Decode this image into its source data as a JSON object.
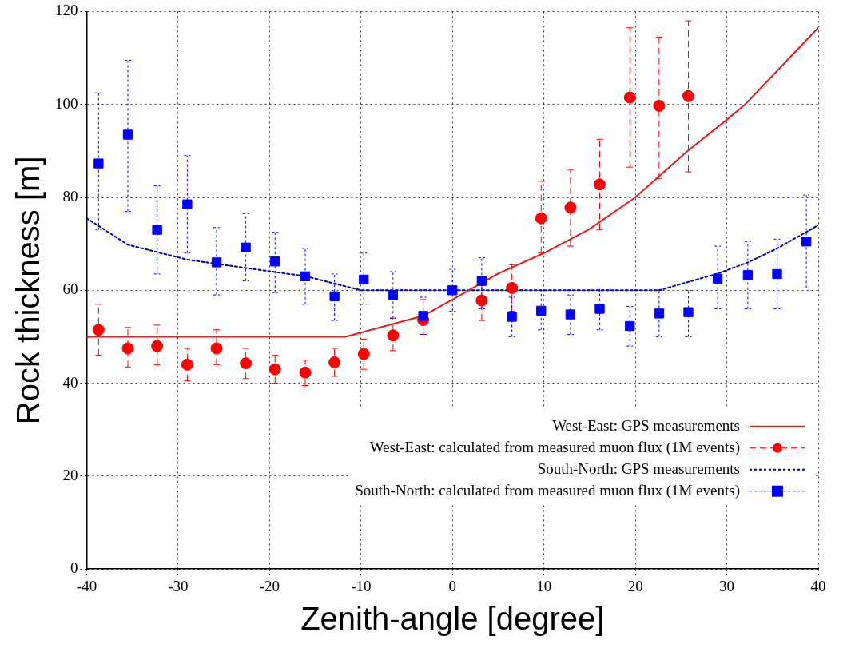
{
  "chart_data": {
    "type": "scatter",
    "xlabel": "Zenith-angle [degree]",
    "ylabel": "Rock thickness [m]",
    "xlim": [
      -40,
      40
    ],
    "xticks": [
      -40,
      -30,
      -20,
      -10,
      0,
      10,
      20,
      30,
      40
    ],
    "ylim": [
      0,
      120
    ],
    "yticks": [
      0,
      20,
      40,
      60,
      80,
      100,
      120
    ],
    "grid": true,
    "legend": "bottom right",
    "series": [
      {
        "name": "West-East: GPS measurements",
        "type": "line",
        "color": "#e41a1c",
        "line_style": "solid",
        "marker": "none",
        "x": [
          -40,
          -11.7,
          -3.2,
          0,
          5,
          10,
          15,
          20,
          25.6,
          30,
          32,
          40
        ],
        "values": [
          50,
          50,
          54.5,
          58,
          63.6,
          68,
          73.2,
          80,
          89.8,
          96.7,
          100,
          116.5
        ]
      },
      {
        "name": "West-East: calculated from measured muon flux (1M events)",
        "type": "scatter",
        "color": "#ff0000",
        "marker": "circle",
        "line_style": "dashed",
        "x": [
          -38.7,
          -35.5,
          -32.3,
          -29,
          -25.8,
          -22.6,
          -19.4,
          -16.1,
          -12.9,
          -9.7,
          -6.5,
          -3.2,
          3.2,
          6.5,
          9.7,
          12.9,
          16.1,
          19.4,
          22.6,
          25.8
        ],
        "values": [
          51.5,
          47.5,
          48,
          44,
          47.5,
          44.3,
          43,
          42.3,
          44.5,
          46.3,
          50.3,
          53.6,
          57.8,
          60.5,
          75.5,
          77.8,
          82.8,
          101.5,
          99.7,
          101.8
        ],
        "errors": [
          [
            46,
            57
          ],
          [
            43.5,
            52
          ],
          [
            44,
            52.5
          ],
          [
            40.5,
            47.5
          ],
          [
            44,
            51.5
          ],
          [
            41,
            47.5
          ],
          [
            40,
            46
          ],
          [
            39.5,
            45
          ],
          [
            41.5,
            47.5
          ],
          [
            43,
            49.5
          ],
          [
            47,
            54
          ],
          [
            50.5,
            58
          ],
          [
            53.5,
            61.5
          ],
          [
            55.5,
            65.5
          ],
          [
            68,
            83.5
          ],
          [
            69.5,
            86
          ],
          [
            73,
            92.5
          ],
          [
            86.5,
            116.5
          ],
          [
            84,
            114.5
          ],
          [
            85.5,
            118
          ]
        ]
      },
      {
        "name": "South-North: GPS measurements",
        "type": "line",
        "color": "#0000a0",
        "line_style": "dotted",
        "marker": "none",
        "x": [
          -40,
          -35.5,
          -29,
          -22.6,
          -16,
          -10,
          22.6,
          29,
          32.3,
          35.5,
          40
        ],
        "values": [
          75.5,
          69.8,
          66.6,
          64.8,
          63,
          60,
          60,
          63.6,
          66,
          69,
          74
        ]
      },
      {
        "name": "South-North: calculated from measured muon flux (1M events)",
        "type": "scatter",
        "color": "#0000ff",
        "marker": "square",
        "line_style": "dotted",
        "x": [
          -38.7,
          -35.5,
          -32.3,
          -29,
          -25.8,
          -22.6,
          -19.4,
          -16.1,
          -12.9,
          -9.7,
          -6.5,
          -3.2,
          0,
          3.2,
          6.5,
          9.7,
          12.9,
          16.1,
          19.4,
          22.6,
          25.8,
          29,
          32.3,
          35.5,
          38.7
        ],
        "values": [
          87.3,
          93.5,
          73,
          78.5,
          66,
          69.2,
          66.2,
          63,
          58.7,
          62.3,
          59,
          54.5,
          60,
          62,
          54.3,
          55.6,
          54.8,
          56,
          52.3,
          55,
          55.3,
          62.5,
          63.3,
          63.5,
          70.5
        ],
        "errors": [
          [
            73,
            102.5
          ],
          [
            77,
            109.5
          ],
          [
            63.5,
            82.5
          ],
          [
            68,
            89
          ],
          [
            59,
            73.5
          ],
          [
            62,
            76.5
          ],
          [
            59.5,
            72.5
          ],
          [
            57,
            69
          ],
          [
            53.5,
            63.5
          ],
          [
            57,
            68
          ],
          [
            54,
            64
          ],
          [
            50.5,
            58.5
          ],
          [
            55.5,
            64.5
          ],
          [
            56,
            67
          ],
          [
            50,
            58.5
          ],
          [
            51.5,
            60
          ],
          [
            50.5,
            59
          ],
          [
            51.5,
            60.5
          ],
          [
            48,
            56.5
          ],
          [
            50,
            60
          ],
          [
            50,
            60
          ],
          [
            56,
            69.5
          ],
          [
            56,
            70.5
          ],
          [
            56,
            71
          ],
          [
            60.5,
            80.5
          ]
        ]
      }
    ]
  }
}
